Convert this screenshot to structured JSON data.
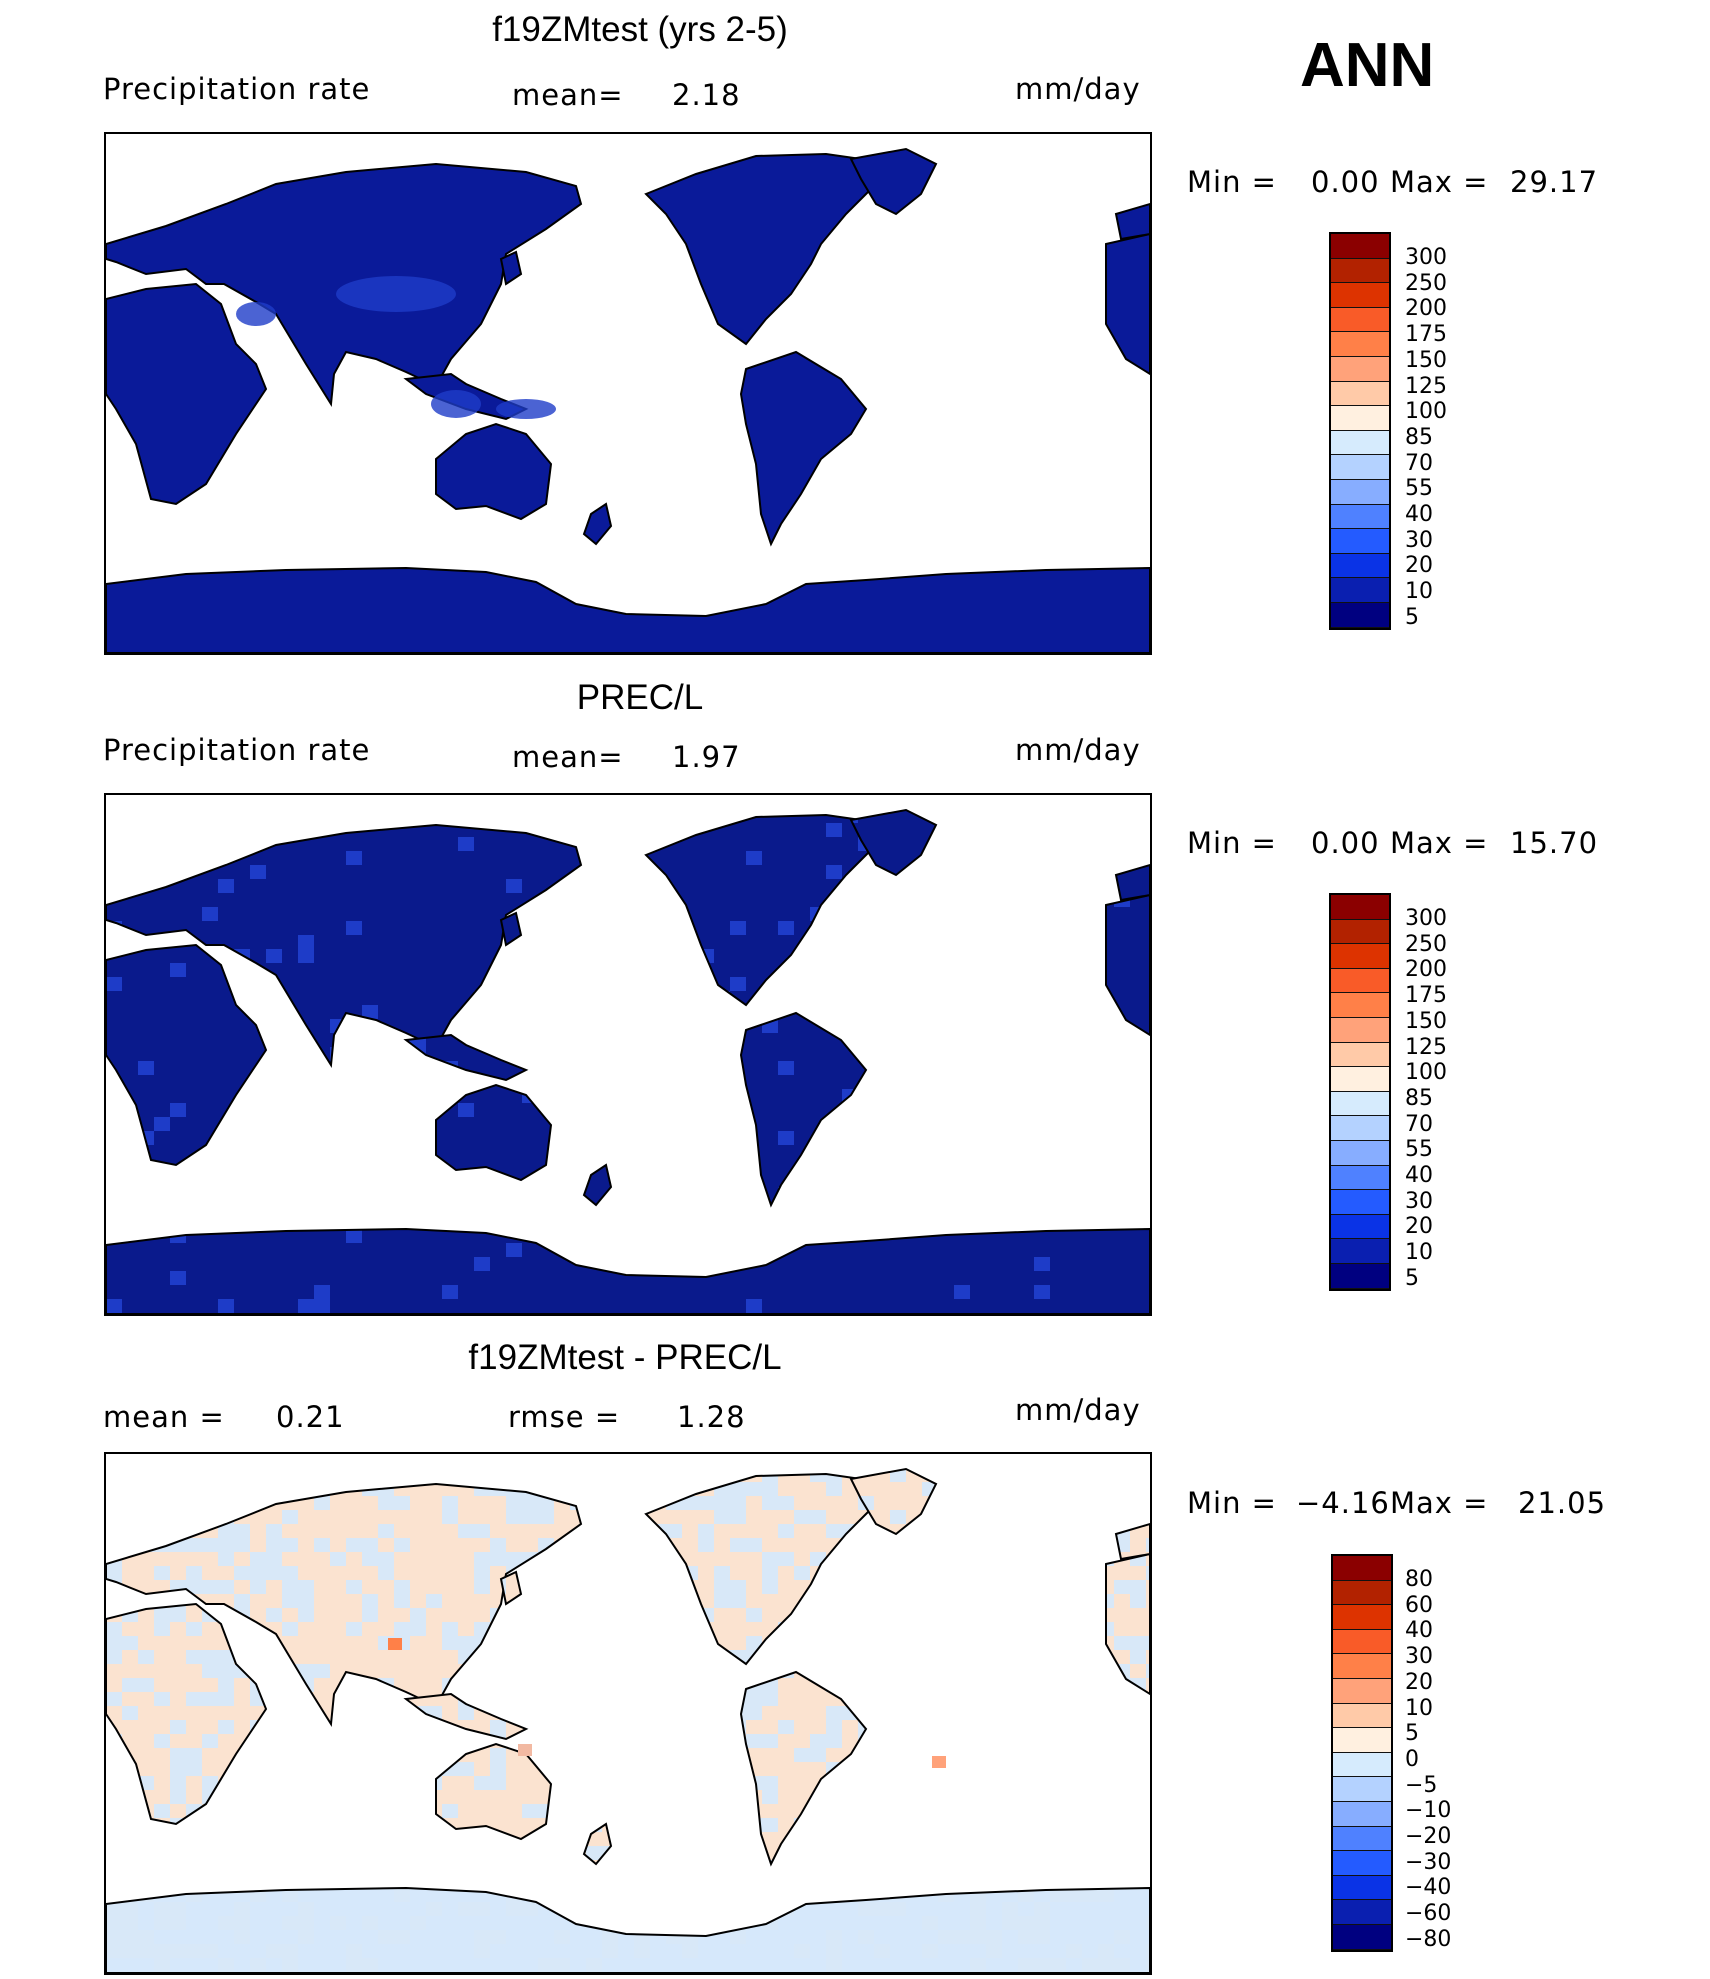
{
  "season": "ANN",
  "panels": [
    {
      "title": "f19ZMtest (yrs 2-5)",
      "left_label": "Precipitation  rate",
      "mid_label": "mean=",
      "mid_value": "2.18",
      "units": "mm/day",
      "min_label": "Min  =",
      "min_value": "0.00",
      "max_label": "Max  =",
      "max_value": "29.17",
      "scale_ticks": [
        "300",
        "250",
        "200",
        "175",
        "150",
        "125",
        "100",
        "85",
        "70",
        "55",
        "40",
        "30",
        "20",
        "10",
        "5"
      ],
      "scale_colors": [
        "#8b0000",
        "#b22200",
        "#dd3300",
        "#f95b28",
        "#ff8048",
        "#ffa27a",
        "#ffcaa8",
        "#fff0e0",
        "#d6ebfd",
        "#b4d2ff",
        "#87adff",
        "#4f81ff",
        "#245bff",
        "#0a33e6",
        "#0a1fb0",
        "#000080"
      ],
      "fill": "#0a1a99",
      "accent": "#1e3cc8",
      "style": "smooth"
    },
    {
      "title": "PREC/L",
      "left_label": "Precipitation  rate",
      "mid_label": "mean=",
      "mid_value": "1.97",
      "units": "mm/day",
      "min_label": "Min  =",
      "min_value": "0.00",
      "max_label": "Max  =",
      "max_value": "15.70",
      "scale_ticks": [
        "300",
        "250",
        "200",
        "175",
        "150",
        "125",
        "100",
        "85",
        "70",
        "55",
        "40",
        "30",
        "20",
        "10",
        "5"
      ],
      "scale_colors": [
        "#8b0000",
        "#b22200",
        "#dd3300",
        "#f95b28",
        "#ff8048",
        "#ffa27a",
        "#ffcaa8",
        "#fff0e0",
        "#d6ebfd",
        "#b4d2ff",
        "#87adff",
        "#4f81ff",
        "#245bff",
        "#0a33e6",
        "#0a1fb0",
        "#000080"
      ],
      "fill": "#0a1a8c",
      "accent": "#1e3cc8",
      "style": "blocky"
    },
    {
      "title": "f19ZMtest - PREC/L",
      "left_label": "mean  =",
      "left_value": "0.21",
      "mid_label": "rmse  =",
      "mid_value": "1.28",
      "units": "mm/day",
      "min_label": "Min  =",
      "min_value": "−4.16",
      "max_label": "Max  =",
      "max_value": "21.05",
      "scale_ticks": [
        "80",
        "60",
        "40",
        "30",
        "20",
        "10",
        "5",
        "0",
        "−5",
        "−10",
        "−20",
        "−30",
        "−40",
        "−60",
        "−80"
      ],
      "scale_colors": [
        "#8b0000",
        "#b22200",
        "#dd3300",
        "#f95b28",
        "#ff8048",
        "#ffa27a",
        "#ffcaa8",
        "#fff0e0",
        "#d6ebfd",
        "#b4d2ff",
        "#87adff",
        "#4f81ff",
        "#245bff",
        "#0a33e6",
        "#0a1fb0",
        "#000080"
      ],
      "fill": "#fbe3d0",
      "accent": "#d8e8f8",
      "style": "diff"
    }
  ]
}
